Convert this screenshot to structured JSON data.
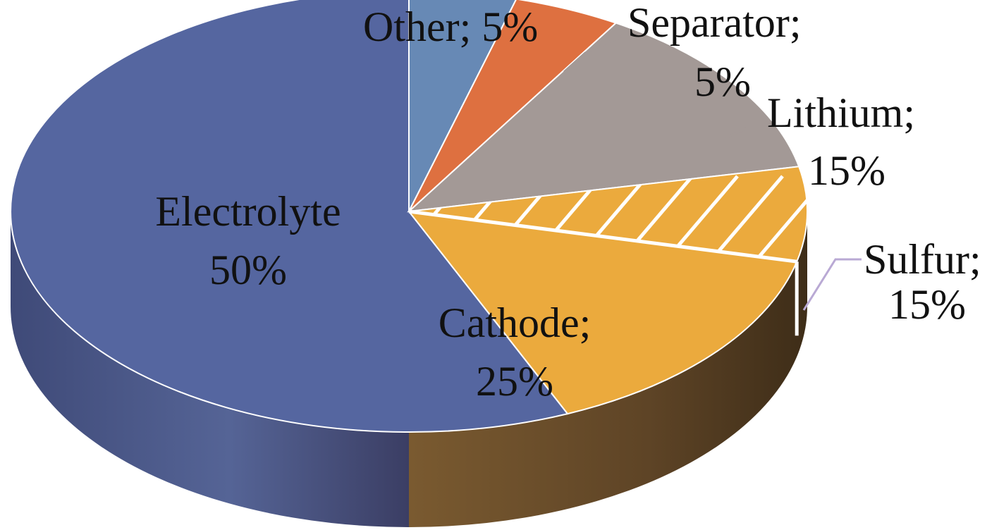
{
  "chart_data": {
    "type": "pie",
    "style": "3d-exploded-cathode",
    "slices": [
      {
        "name": "Electrolyte",
        "value": 50,
        "label_line1": "Electrolyte",
        "label_line2": "50%",
        "color": "#5566A0",
        "side_color": "#414A78"
      },
      {
        "name": "Other",
        "value": 5,
        "label_line1": "Other; 5%",
        "color": "#6789B5"
      },
      {
        "name": "Separator",
        "value": 5,
        "label_line1": "Separator;",
        "label_line2": "5%",
        "color": "#DE7040"
      },
      {
        "name": "Lithium",
        "value": 15,
        "label_line1": "Lithium;",
        "label_line2": "15%",
        "color": "#A39996"
      },
      {
        "name": "Cathode",
        "value": 25,
        "label_line1": "Cathode;",
        "label_line2": "25%",
        "color": "#EBAA3D",
        "side_color": "#6B4F2A"
      },
      {
        "name": "Sulfur",
        "value": 15,
        "label_line1": "Sulfur;",
        "label_line2": "15%",
        "color": "#EBAA3D",
        "hatched": true,
        "part_of": "Cathode"
      }
    ],
    "leader_line_colors": {
      "Separator": "#A39996",
      "Lithium": "#A39996",
      "Sulfur": "#B9A9D4"
    }
  }
}
